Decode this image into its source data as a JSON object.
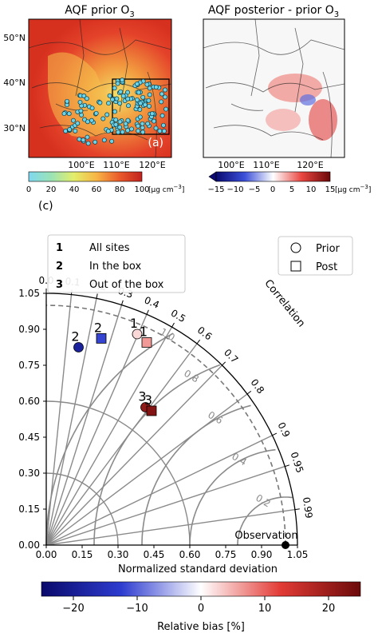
{
  "maps": {
    "left": {
      "title": "AQF prior O",
      "title_sub": "3",
      "panel_tag": "(a)",
      "lat_labels": [
        "50°N",
        "40°N",
        "30°N"
      ],
      "lon_labels": [
        "100°E",
        "110°E",
        "120°E"
      ],
      "colorbar": {
        "ticks": [
          "0",
          "20",
          "40",
          "60",
          "80",
          "100"
        ],
        "unit_main": "[μg cm",
        "unit_sup": "−3",
        "unit_end": "]"
      }
    },
    "right": {
      "title": "AQF posterior - prior O",
      "title_sub": "3",
      "lon_labels": [
        "100°E",
        "110°E",
        "120°E"
      ],
      "colorbar": {
        "ticks": [
          "−15",
          "−10",
          "−5",
          "0",
          "5",
          "10",
          "15"
        ],
        "unit_main": "[μg cm",
        "unit_sup": "−3",
        "unit_end": "]"
      }
    }
  },
  "chart_data": {
    "type": "taylor",
    "panel_tag": "(c)",
    "xlabel": "Normalized standard deviation",
    "corr_label": "Correlation",
    "std_ticks": [
      0.0,
      0.15,
      0.3,
      0.45,
      0.6,
      0.75,
      0.9,
      1.05
    ],
    "std_tick_labels": [
      "0.00",
      "0.15",
      "0.30",
      "0.45",
      "0.60",
      "0.75",
      "0.90",
      "1.05"
    ],
    "x_tick_labels": [
      "0.00",
      "0.15",
      "0.30",
      "0.45",
      "0.60",
      "0.75",
      "0.90",
      "1.05"
    ],
    "std_max": 1.05,
    "corr_ticks": [
      0.0,
      0.1,
      0.2,
      0.3,
      0.4,
      0.5,
      0.6,
      0.7,
      0.8,
      0.9,
      0.95,
      0.99
    ],
    "corr_tick_labels": [
      "0.0",
      "0.1",
      "0.2",
      "0.3",
      "0.4",
      "0.5",
      "0.6",
      "0.7",
      "0.8",
      "0.9",
      "0.95",
      "0.99"
    ],
    "rms_contours": [
      0.2,
      0.4,
      0.6,
      0.8,
      1.0
    ],
    "rms_labels": [
      "0.2",
      "0.4",
      "0.6",
      "0.8",
      "1.0"
    ],
    "reference": {
      "std": 1.0,
      "label": "Observation"
    },
    "points": [
      {
        "id": "1",
        "kind": "Prior",
        "x": 0.38,
        "y": 0.88,
        "bias": 2.5
      },
      {
        "id": "1",
        "kind": "Post",
        "x": 0.42,
        "y": 0.845,
        "bias": 6.5
      },
      {
        "id": "2",
        "kind": "Prior",
        "x": 0.135,
        "y": 0.825,
        "bias": -19.0
      },
      {
        "id": "2",
        "kind": "Post",
        "x": 0.23,
        "y": 0.862,
        "bias": -12.0
      },
      {
        "id": "3",
        "kind": "Prior",
        "x": 0.415,
        "y": 0.575,
        "bias": 21.0
      },
      {
        "id": "3",
        "kind": "Post",
        "x": 0.44,
        "y": 0.56,
        "bias": 22.5
      }
    ],
    "legend_groups": [
      {
        "num": "1",
        "label": "All sites"
      },
      {
        "num": "2",
        "label": "In the box"
      },
      {
        "num": "3",
        "label": "Out of the box"
      }
    ],
    "legend_markers": [
      {
        "shape": "circle",
        "label": "Prior"
      },
      {
        "shape": "square",
        "label": "Post"
      }
    ],
    "colorbar": {
      "label": "Relative bias [%]",
      "ticks": [
        -20,
        -10,
        0,
        10,
        20
      ],
      "tick_labels": [
        "−20",
        "−10",
        "0",
        "10",
        "20"
      ],
      "range": [
        -25,
        25
      ],
      "colors": [
        "#0a0a6b",
        "#2d3ccf",
        "#ffffff",
        "#e23a35",
        "#6b0a0a"
      ]
    }
  }
}
